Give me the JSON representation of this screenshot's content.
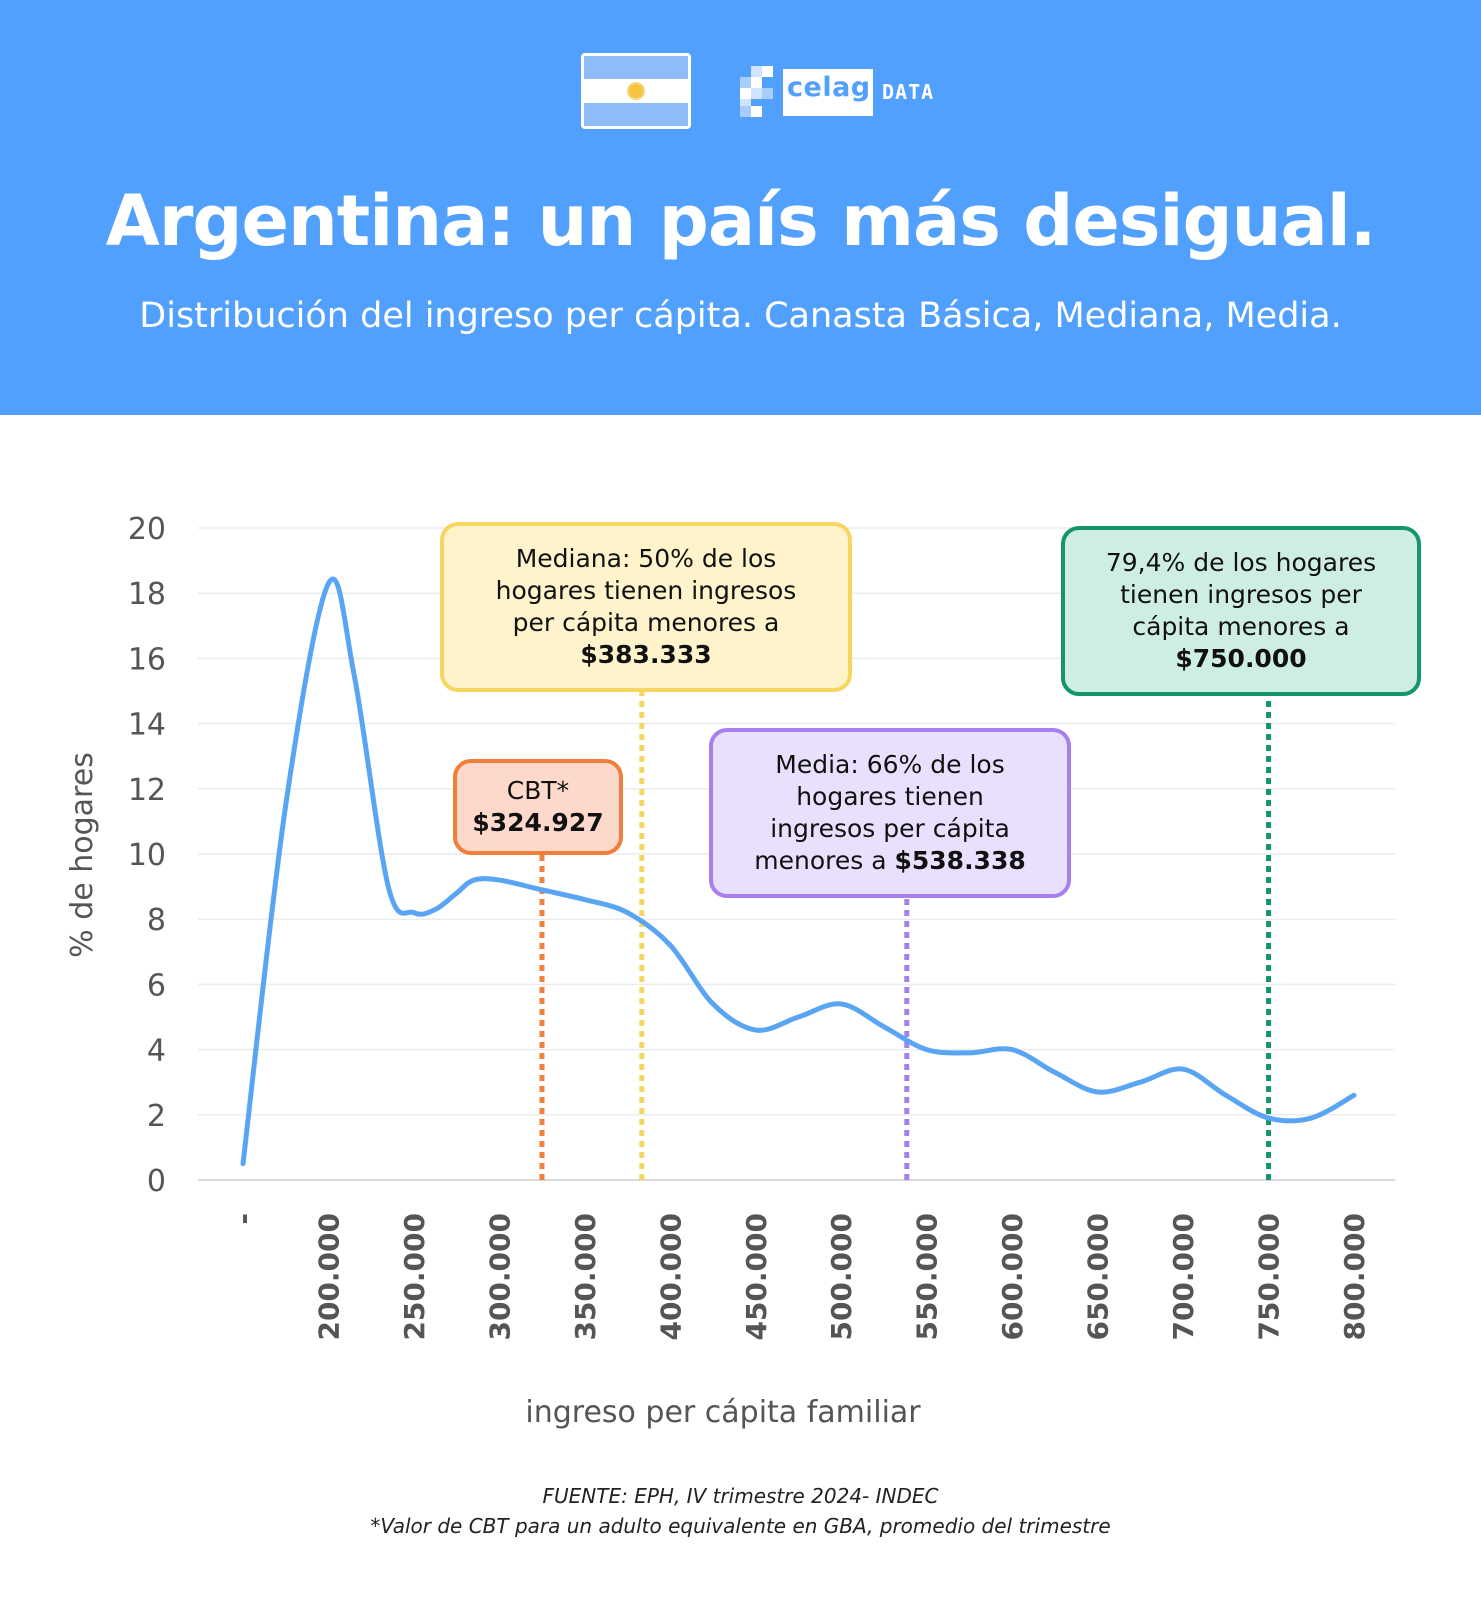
{
  "header": {
    "title": "Argentina: un país más desigual.",
    "subtitle": "Distribución del ingreso per cápita. Canasta Básica, Mediana, Media.",
    "logo_text": "celag",
    "logo_suffix": "DATA",
    "flag_icon": "argentina-flag-icon",
    "colors": {
      "background": "#51a0fe",
      "text": "#ffffff"
    }
  },
  "chart_data": {
    "type": "line",
    "xlabel": "ingreso per cápita familiar",
    "ylabel": "% de hogares",
    "ylim": [
      0,
      20
    ],
    "yticks": [
      "0",
      "2",
      "4",
      "6",
      "8",
      "10",
      "12",
      "14",
      "16",
      "18",
      "20"
    ],
    "categories": [
      "-",
      "200.000",
      "250.000",
      "300.000",
      "350.000",
      "400.000",
      "450.000",
      "500.000",
      "550.000",
      "600.000",
      "650.000",
      "700.000",
      "750.000",
      "800.000"
    ],
    "series": [
      {
        "name": "% de hogares",
        "color": "#5aa5f3",
        "x": [
          150000,
          175000,
          200000,
          215000,
          235000,
          250000,
          262500,
          275000,
          285000,
          300000,
          325000,
          350000,
          375000,
          400000,
          425000,
          450000,
          475000,
          500000,
          525000,
          550000,
          575000,
          600000,
          625000,
          650000,
          675000,
          700000,
          725000,
          750000,
          775000,
          800000
        ],
        "values": [
          0.5,
          11.5,
          18.3,
          15.5,
          9.0,
          8.2,
          8.3,
          8.8,
          9.2,
          9.2,
          8.9,
          8.6,
          8.2,
          7.2,
          5.4,
          4.6,
          5.0,
          5.4,
          4.7,
          4.0,
          3.9,
          4.0,
          3.3,
          2.7,
          3.0,
          3.4,
          2.6,
          1.9,
          1.9,
          2.6
        ]
      }
    ],
    "markers": [
      {
        "name": "cbt",
        "x": 324927,
        "color": "#ef7f3a",
        "fill": "#fdd9cb"
      },
      {
        "name": "mediana",
        "x": 383333,
        "color": "#f6d660",
        "fill": "#fff3cc"
      },
      {
        "name": "media",
        "x": 538338,
        "color": "#a97ff0",
        "fill": "#e8e0fd"
      },
      {
        "name": "p79",
        "x": 750000,
        "color": "#14966a",
        "fill": "#cfeee3"
      }
    ]
  },
  "annotations": {
    "cbt": {
      "line1": "CBT*",
      "value": "$324.927"
    },
    "mediana": {
      "line1": "Mediana: 50% de los",
      "line2": "hogares tienen ingresos",
      "line3": "per cápita menores a",
      "value": "$383.333"
    },
    "media": {
      "line1": "Media: 66% de los",
      "line2": "hogares tienen",
      "line3": "ingresos per cápita",
      "line4": "menores a ",
      "value": "$538.338"
    },
    "p79": {
      "line1": "79,4% de los hogares",
      "line2": "tienen ingresos per",
      "line3": "cápita menores a",
      "value": "$750.000"
    }
  },
  "footer": {
    "source": "FUENTE: EPH, IV trimestre 2024- INDEC",
    "note": "*Valor de CBT para un adulto equivalente en GBA, promedio del trimestre"
  }
}
